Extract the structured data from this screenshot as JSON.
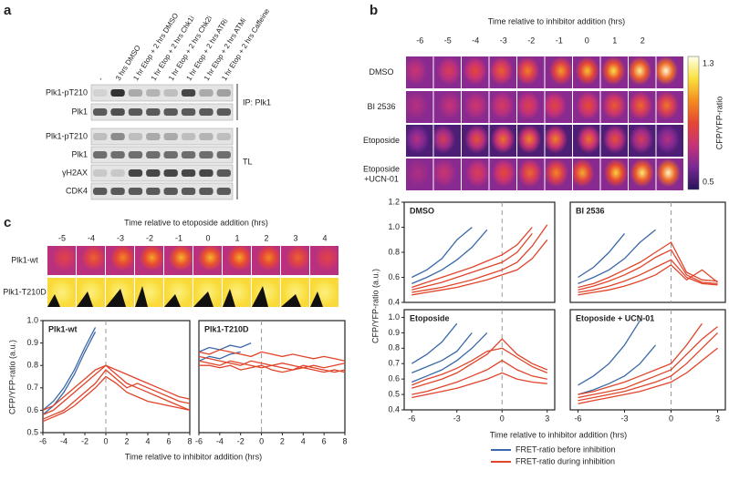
{
  "panel_a": {
    "label": "a",
    "lanes": [
      "-",
      "3 hrs DMSO",
      "1 hr Etop + 2 hrs DMSO",
      "1 hr Etop + 2 hrs Chk1i",
      "1 hr Etop + 2 hrs Chk2i",
      "1 hr Etop + 2 hrs ATRi",
      "1 hr Etop + 2 hrs ATMi",
      "1 hr Etop + 2 hrs Caffeine"
    ],
    "rows": [
      "Plk1-pT210",
      "Plk1",
      "Plk1-pT210",
      "Plk1",
      "γH2AX",
      "CDK4"
    ],
    "groups": [
      "IP: Plk1",
      "TL"
    ]
  },
  "panel_b": {
    "label": "b",
    "title": "Time relative to inhibitor addition (hrs)",
    "times": [
      -6,
      -5,
      -4,
      -3,
      -2,
      -1,
      0,
      1,
      2
    ],
    "rows": [
      [
        "DMSO"
      ],
      [
        "BI 2536"
      ],
      [
        "Etoposide"
      ],
      [
        "Etoposide",
        "+UCN-01"
      ]
    ],
    "colorbar": {
      "label": "CFP/YFP-ratio",
      "max": 1.3,
      "min": 0.5
    },
    "y_label": "CFP/YFP-ratio (a.u.)",
    "x_label": "Time relative to inhibitor addition (hrs)"
  },
  "panel_c": {
    "label": "c",
    "title": "Time relative to etoposide addition (hrs)",
    "times": [
      -5,
      -4,
      -3,
      -2,
      -1,
      0,
      1,
      2,
      3,
      4
    ],
    "rows": [
      "Plk1-wt",
      "Plk1-T210D"
    ],
    "y_label": "CFP/YFP-ratio (a.u.)",
    "x_label": "Time relative to inhibitor addition (hrs)"
  },
  "legend": {
    "entries": [
      {
        "label": "FRET-ratio before inhibition",
        "color": "#3a68a8"
      },
      {
        "label": "FRET-ratio during inhibition",
        "color": "#e0442a"
      }
    ]
  },
  "chart_data": [
    {
      "type": "line",
      "title": "DMSO",
      "x": [
        -6,
        -5,
        -4,
        -3,
        -2,
        -1,
        0,
        1,
        2,
        3
      ],
      "xlim": [
        -6.5,
        3.5
      ],
      "ylim": [
        0.4,
        1.2
      ],
      "vline": 0,
      "yticks": [
        0.4,
        0.6,
        0.8,
        {
          "value": 1,
          "label": "1.0"
        },
        1.2
      ],
      "series": [
        {
          "color": "#3a68a8",
          "values": [
            0.55,
            0.6,
            0.66,
            0.74,
            0.84,
            0.98,
            null,
            null,
            null,
            null
          ]
        },
        {
          "color": "#3a68a8",
          "values": [
            0.6,
            0.66,
            0.75,
            0.9,
            1.0,
            null,
            null,
            null,
            null,
            null
          ]
        },
        {
          "color": "#e0442a",
          "values": [
            0.5,
            0.53,
            0.56,
            0.6,
            0.64,
            0.68,
            0.72,
            0.8,
            0.95,
            null
          ]
        },
        {
          "color": "#e0442a",
          "values": [
            0.48,
            0.5,
            0.52,
            0.55,
            0.58,
            0.62,
            0.66,
            0.72,
            0.85,
            1.02
          ]
        },
        {
          "color": "#e0442a",
          "values": [
            0.46,
            0.48,
            0.5,
            0.52,
            0.55,
            0.58,
            0.62,
            0.66,
            0.75,
            0.9
          ]
        },
        {
          "color": "#e0442a",
          "values": [
            0.52,
            0.56,
            0.6,
            0.64,
            0.68,
            0.73,
            0.78,
            0.86,
            1.0,
            null
          ]
        }
      ]
    },
    {
      "type": "line",
      "title": "BI 2536",
      "x": [
        -6,
        -5,
        -4,
        -3,
        -2,
        -1,
        0,
        1,
        2,
        3
      ],
      "xlim": [
        -6.5,
        3.5
      ],
      "ylim": [
        0.4,
        1.2
      ],
      "vline": 0,
      "series": [
        {
          "color": "#3a68a8",
          "values": [
            0.55,
            0.6,
            0.66,
            0.75,
            0.88,
            0.98,
            null,
            null,
            null,
            null
          ]
        },
        {
          "color": "#3a68a8",
          "values": [
            0.6,
            0.68,
            0.8,
            0.95,
            null,
            null,
            null,
            null,
            null,
            null
          ]
        },
        {
          "color": "#e0442a",
          "values": [
            0.5,
            0.53,
            0.57,
            0.62,
            0.68,
            0.76,
            0.82,
            0.62,
            0.56,
            0.55
          ]
        },
        {
          "color": "#e0442a",
          "values": [
            0.48,
            0.5,
            0.53,
            0.57,
            0.62,
            0.68,
            0.74,
            0.6,
            0.55,
            0.54
          ]
        },
        {
          "color": "#e0442a",
          "values": [
            0.46,
            0.48,
            0.5,
            0.53,
            0.57,
            0.62,
            0.7,
            0.58,
            0.66,
            0.56
          ]
        },
        {
          "color": "#e0442a",
          "values": [
            0.52,
            0.55,
            0.6,
            0.66,
            0.72,
            0.8,
            0.88,
            0.64,
            0.58,
            0.57
          ]
        }
      ]
    },
    {
      "type": "line",
      "title": "Etoposide",
      "x": [
        -6,
        -5,
        -4,
        -3,
        -2,
        -1,
        0,
        1,
        2,
        3
      ],
      "xlim": [
        -6.5,
        3.5
      ],
      "ylim": [
        0.4,
        1.05
      ],
      "vline": 0,
      "yticks": [
        0.4,
        0.5,
        0.6,
        0.7,
        0.8,
        0.9,
        {
          "value": 1,
          "label": "1.0"
        }
      ],
      "xticks": [
        -6,
        -3,
        0,
        3
      ],
      "series": [
        {
          "color": "#3a68a8",
          "values": [
            0.64,
            0.68,
            0.72,
            0.78,
            0.9,
            null,
            null,
            null,
            null,
            null
          ]
        },
        {
          "color": "#3a68a8",
          "values": [
            0.7,
            0.76,
            0.84,
            0.96,
            null,
            null,
            null,
            null,
            null,
            null
          ]
        },
        {
          "color": "#3a68a8",
          "values": [
            0.58,
            0.62,
            0.66,
            0.72,
            0.8,
            0.9,
            null,
            null,
            null,
            null
          ]
        },
        {
          "color": "#e0442a",
          "values": [
            0.54,
            0.57,
            0.6,
            0.64,
            0.7,
            0.76,
            0.86,
            0.76,
            0.7,
            0.66
          ]
        },
        {
          "color": "#e0442a",
          "values": [
            0.5,
            0.52,
            0.55,
            0.58,
            0.62,
            0.66,
            0.72,
            0.66,
            0.62,
            0.6
          ]
        },
        {
          "color": "#e0442a",
          "values": [
            0.48,
            0.5,
            0.52,
            0.54,
            0.57,
            0.6,
            0.64,
            0.6,
            0.58,
            0.57
          ]
        },
        {
          "color": "#e0442a",
          "values": [
            0.56,
            0.6,
            0.63,
            0.67,
            0.72,
            0.78,
            0.8,
            0.74,
            0.68,
            0.64
          ]
        }
      ]
    },
    {
      "type": "line",
      "title": "Etoposide + UCN-01",
      "x": [
        -6,
        -5,
        -4,
        -3,
        -2,
        -1,
        0,
        1,
        2,
        3
      ],
      "xlim": [
        -6.5,
        3.5
      ],
      "ylim": [
        0.4,
        1.05
      ],
      "vline": 0,
      "xticks": [
        -6,
        -3,
        0,
        3
      ],
      "series": [
        {
          "color": "#3a68a8",
          "values": [
            0.5,
            0.53,
            0.57,
            0.62,
            0.7,
            0.82,
            null,
            null,
            null,
            null
          ]
        },
        {
          "color": "#3a68a8",
          "values": [
            0.56,
            0.62,
            0.7,
            0.82,
            0.98,
            null,
            null,
            null,
            null,
            null
          ]
        },
        {
          "color": "#e0442a",
          "values": [
            0.48,
            0.5,
            0.52,
            0.54,
            0.58,
            0.62,
            0.66,
            0.76,
            0.86,
            0.94
          ]
        },
        {
          "color": "#e0442a",
          "values": [
            0.46,
            0.48,
            0.5,
            0.52,
            0.55,
            0.58,
            0.62,
            0.7,
            0.8,
            0.9
          ]
        },
        {
          "color": "#e0442a",
          "values": [
            0.5,
            0.52,
            0.55,
            0.58,
            0.62,
            0.66,
            0.7,
            0.82,
            0.96,
            null
          ]
        },
        {
          "color": "#e0442a",
          "values": [
            0.44,
            0.46,
            0.48,
            0.5,
            0.52,
            0.55,
            0.58,
            0.64,
            0.72,
            0.8
          ]
        }
      ]
    },
    {
      "type": "line",
      "title": "Plk1-wt",
      "x": [
        -6,
        -5,
        -4,
        -3,
        -2,
        -1,
        0,
        1,
        2,
        3,
        4,
        5,
        6,
        7,
        8
      ],
      "xlim": [
        -6,
        8
      ],
      "ylim": [
        0.5,
        1
      ],
      "vline": 0,
      "yticks": [
        0.5,
        0.6,
        0.7,
        0.8,
        0.9,
        {
          "value": 1,
          "label": "1.0"
        }
      ],
      "xticks": [
        -6,
        -4,
        -2,
        0,
        2,
        4,
        6,
        8
      ],
      "series": [
        {
          "color": "#3a68a8",
          "values": [
            0.6,
            0.64,
            0.7,
            0.78,
            0.88,
            0.97,
            null,
            null,
            null,
            null,
            null,
            null,
            null,
            null,
            null
          ]
        },
        {
          "color": "#3a68a8",
          "values": [
            0.58,
            0.62,
            0.68,
            0.76,
            0.86,
            0.95,
            null,
            null,
            null,
            null,
            null,
            null,
            null,
            null,
            null
          ]
        },
        {
          "color": "#e0442a",
          "values": [
            0.58,
            0.6,
            0.64,
            0.68,
            0.72,
            0.76,
            0.8,
            0.76,
            0.72,
            0.7,
            0.68,
            0.66,
            0.64,
            0.62,
            0.6
          ]
        },
        {
          "color": "#e0442a",
          "values": [
            0.56,
            0.58,
            0.6,
            0.64,
            0.68,
            0.72,
            0.78,
            0.74,
            0.7,
            0.72,
            0.7,
            0.68,
            0.66,
            0.64,
            0.63
          ]
        },
        {
          "color": "#e0442a",
          "values": [
            0.55,
            0.57,
            0.59,
            0.62,
            0.66,
            0.7,
            0.75,
            0.72,
            0.68,
            0.66,
            0.64,
            0.63,
            0.62,
            0.61,
            0.6
          ]
        },
        {
          "color": "#e0442a",
          "values": [
            0.6,
            0.62,
            0.66,
            0.7,
            0.74,
            0.78,
            0.8,
            0.78,
            0.76,
            0.74,
            0.72,
            0.7,
            0.68,
            0.66,
            0.65
          ]
        }
      ]
    },
    {
      "type": "line",
      "title": "Plk1-T210D",
      "x": [
        -6,
        -5,
        -4,
        -3,
        -2,
        -1,
        0,
        1,
        2,
        3,
        4,
        5,
        6,
        7,
        8
      ],
      "xlim": [
        -6,
        8
      ],
      "ylim": [
        0.5,
        1
      ],
      "vline": 0,
      "xticks": [
        -6,
        -4,
        -2,
        0,
        2,
        4,
        6,
        8
      ],
      "series": [
        {
          "color": "#3a68a8",
          "values": [
            0.86,
            0.88,
            0.87,
            0.89,
            0.88,
            0.9,
            null,
            null,
            null,
            null,
            null,
            null,
            null,
            null,
            null
          ]
        },
        {
          "color": "#3a68a8",
          "values": [
            0.82,
            0.84,
            0.83,
            0.85,
            0.86,
            null,
            null,
            null,
            null,
            null,
            null,
            null,
            null,
            null,
            null
          ]
        },
        {
          "color": "#e0442a",
          "values": [
            0.86,
            0.85,
            0.87,
            0.86,
            0.85,
            0.84,
            0.86,
            0.85,
            0.84,
            0.85,
            0.84,
            0.83,
            0.84,
            0.83,
            0.82
          ]
        },
        {
          "color": "#e0442a",
          "values": [
            0.82,
            0.81,
            0.8,
            0.82,
            0.81,
            0.8,
            0.79,
            0.8,
            0.81,
            0.8,
            0.79,
            0.8,
            0.79,
            0.8,
            0.81
          ]
        },
        {
          "color": "#e0442a",
          "values": [
            0.84,
            0.83,
            0.82,
            0.81,
            0.8,
            0.82,
            0.81,
            0.8,
            0.79,
            0.78,
            0.8,
            0.79,
            0.78,
            0.77,
            0.78
          ]
        },
        {
          "color": "#e0442a",
          "values": [
            0.8,
            0.8,
            0.79,
            0.8,
            0.78,
            0.79,
            0.8,
            0.78,
            0.77,
            0.78,
            0.79,
            0.78,
            0.77,
            0.78,
            0.77
          ]
        }
      ]
    }
  ]
}
